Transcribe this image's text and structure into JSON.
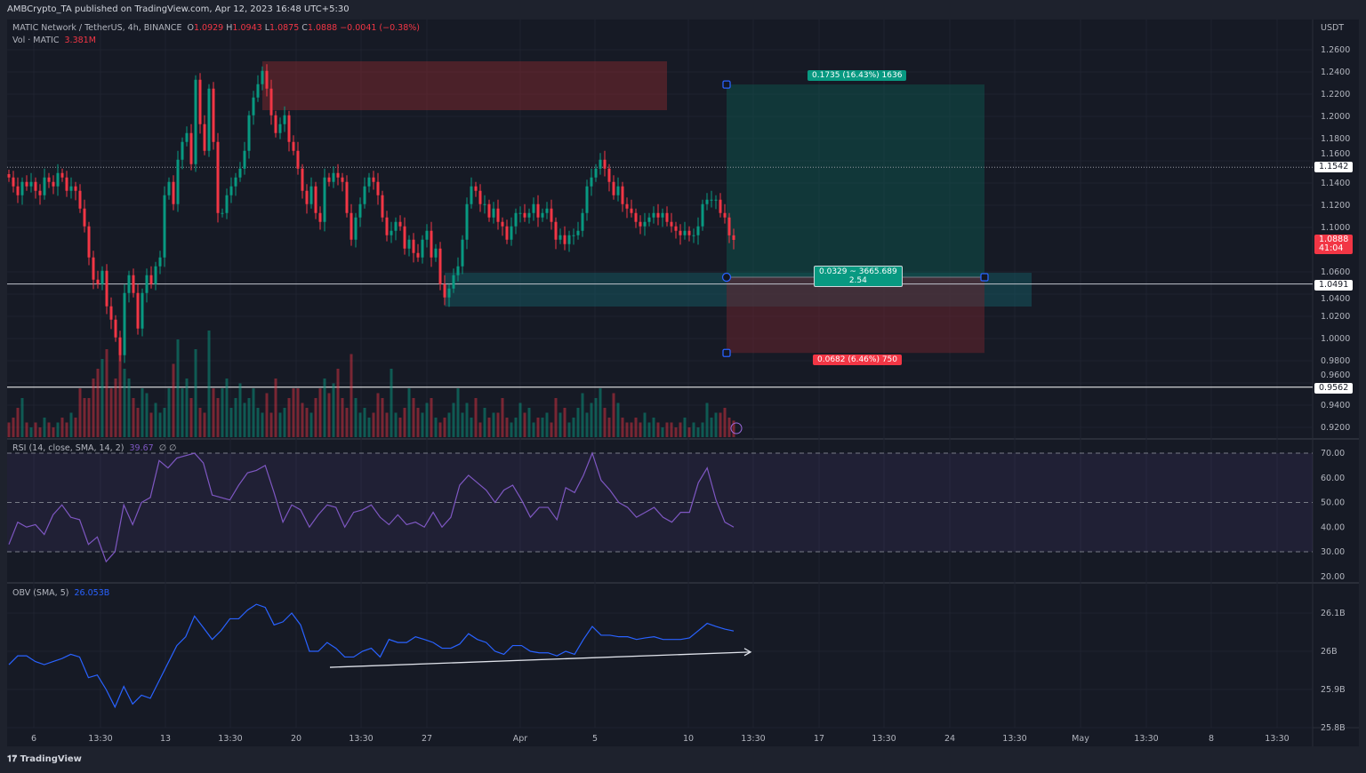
{
  "header": {
    "published": "AMBCrypto_TA published on TradingView.com, Apr 12, 2023 16:48 UTC+5:30"
  },
  "legend": {
    "symbol": "MATIC Network / TetherUS, 4h, BINANCE",
    "o_label": "O",
    "o": "1.0929",
    "h_label": "H",
    "h": "1.0943",
    "l_label": "L",
    "l": "1.0875",
    "c_label": "C",
    "c": "1.0888",
    "change": "−0.0041 (−0.38%)",
    "vol_label": "Vol · MATIC",
    "vol": "3.381M",
    "rsi_label": "RSI (14, close, SMA, 14, 2)",
    "rsi_value": "39.67",
    "rsi_extra": "∅ ∅",
    "obv_label": "OBV (SMA, 5)",
    "obv_value": "26.053B"
  },
  "price_axis": {
    "currency": "USDT",
    "ticks": [
      "1.2600",
      "1.2400",
      "1.2200",
      "1.2000",
      "1.1800",
      "1.1600",
      "1.1400",
      "1.1200",
      "1.1000",
      "1.0600",
      "1.0400",
      "1.0200",
      "1.0000",
      "0.9800",
      "0.9600",
      "0.9400",
      "0.9200"
    ],
    "last_price": "1.0888",
    "countdown": "41:04",
    "level_labels": [
      "1.1542",
      "1.0491",
      "0.9562"
    ]
  },
  "rsi_axis": {
    "ticks": [
      "70.00",
      "60.00",
      "50.00",
      "40.00",
      "30.00",
      "20.00"
    ]
  },
  "obv_axis": {
    "ticks": [
      "26.1B",
      "26B",
      "25.9B",
      "25.8B"
    ]
  },
  "time_axis": {
    "ticks": [
      "6",
      "13:30",
      "13",
      "13:30",
      "20",
      "13:30",
      "27",
      "Apr",
      "5",
      "10",
      "13:30",
      "17",
      "13:30",
      "24",
      "13:30",
      "May",
      "13:30",
      "8",
      "13:30"
    ]
  },
  "position_tool": {
    "target_label": "0.1735 (16.43%) 1636",
    "center_label_1": "0.0329 ~ 3665.689",
    "center_label_2": "2.54",
    "stop_label": "0.0682 (6.46%) 750",
    "entry": 1.0552,
    "target": 1.2287,
    "stop": 0.987
  },
  "footer": {
    "brand": "TradingView"
  },
  "colors": {
    "up": "#089981",
    "down": "#f23645",
    "rsi": "#7e57c2",
    "obv": "#2962ff",
    "profit_bg": "#0f3d3a",
    "loss_bg": "#4a1f26",
    "background": "#161a25"
  },
  "chart_data": [
    {
      "type": "candlestick",
      "title": "MATIC Network / TetherUS, 4h, BINANCE",
      "ylabel": "USDT",
      "ylim": [
        0.91,
        1.275
      ],
      "grid": true,
      "close": [
        1.145,
        1.137,
        1.129,
        1.141,
        1.137,
        1.141,
        1.133,
        1.129,
        1.145,
        1.141,
        1.137,
        1.149,
        1.145,
        1.133,
        1.137,
        1.133,
        1.117,
        1.101,
        1.073,
        1.053,
        1.049,
        1.061,
        1.029,
        1.017,
        1.001,
        0.985,
        1.041,
        1.057,
        1.041,
        1.009,
        1.041,
        1.057,
        1.049,
        1.065,
        1.073,
        1.129,
        1.141,
        1.121,
        1.161,
        1.177,
        1.185,
        1.157,
        1.233,
        1.193,
        1.169,
        1.225,
        1.177,
        1.113,
        1.113,
        1.129,
        1.137,
        1.145,
        1.153,
        1.169,
        1.201,
        1.217,
        1.229,
        1.241,
        1.225,
        1.201,
        1.185,
        1.193,
        1.201,
        1.177,
        1.169,
        1.153,
        1.133,
        1.121,
        1.137,
        1.113,
        1.105,
        1.145,
        1.141,
        1.149,
        1.145,
        1.141,
        1.113,
        1.089,
        1.109,
        1.121,
        1.137,
        1.145,
        1.141,
        1.129,
        1.109,
        1.093,
        1.097,
        1.105,
        1.101,
        1.081,
        1.089,
        1.077,
        1.073,
        1.089,
        1.097,
        1.073,
        1.081,
        1.049,
        1.037,
        1.045,
        1.057,
        1.065,
        1.089,
        1.121,
        1.137,
        1.133,
        1.121,
        1.121,
        1.109,
        1.117,
        1.105,
        1.101,
        1.089,
        1.101,
        1.113,
        1.113,
        1.109,
        1.113,
        1.121,
        1.109,
        1.113,
        1.117,
        1.105,
        1.089,
        1.093,
        1.085,
        1.093,
        1.093,
        1.097,
        1.113,
        1.137,
        1.145,
        1.153,
        1.161,
        1.153,
        1.141,
        1.129,
        1.137,
        1.121,
        1.117,
        1.113,
        1.105,
        1.101,
        1.105,
        1.109,
        1.113,
        1.109,
        1.113,
        1.105,
        1.101,
        1.097,
        1.093,
        1.097,
        1.093,
        1.093,
        1.101,
        1.121,
        1.125,
        1.125,
        1.125,
        1.113,
        1.109,
        1.0929,
        1.0888
      ],
      "volume_millions": [
        3,
        4,
        6,
        8,
        3,
        2,
        3,
        2,
        4,
        3,
        2,
        3,
        4,
        3,
        5,
        4,
        10,
        8,
        8,
        12,
        14,
        16,
        18,
        10,
        12,
        18,
        14,
        12,
        8,
        6,
        10,
        9,
        5,
        7,
        5,
        6,
        10,
        15,
        20,
        10,
        12,
        8,
        18,
        6,
        5,
        24,
        10,
        8,
        10,
        12,
        6,
        8,
        11,
        7,
        8,
        10,
        6,
        5,
        9,
        5,
        12,
        5,
        6,
        8,
        10,
        10,
        7,
        6,
        5,
        8,
        10,
        12,
        9,
        11,
        14,
        8,
        6,
        17,
        8,
        5,
        6,
        4,
        5,
        9,
        8,
        5,
        14,
        5,
        4,
        6,
        10,
        8,
        6,
        5,
        7,
        8,
        4,
        3,
        4,
        5,
        7,
        10,
        5,
        7,
        4,
        8,
        3,
        6,
        4,
        5,
        5,
        8,
        4,
        3,
        4,
        7,
        5,
        6,
        3,
        4,
        4,
        5,
        3,
        8,
        5,
        6,
        3,
        4,
        6,
        9,
        5,
        7,
        8,
        10,
        6,
        4,
        9,
        7,
        4,
        3,
        3,
        4,
        3,
        5,
        3,
        4,
        3,
        2,
        3,
        3,
        2,
        3,
        4,
        2,
        3,
        2,
        3,
        7,
        4,
        5,
        5,
        6,
        4,
        3.381
      ],
      "horizontal_levels": [
        1.1542,
        1.0491,
        0.9562
      ],
      "zones": [
        {
          "kind": "supply",
          "top": 1.2496,
          "bottom": 1.2056
        },
        {
          "kind": "demand",
          "top": 1.0592,
          "bottom": 1.0288
        }
      ]
    },
    {
      "type": "line",
      "title": "RSI (14, close, SMA, 14, 2)",
      "ylim": [
        20,
        70
      ],
      "bands": [
        30,
        50,
        70
      ],
      "values": [
        33,
        42,
        40,
        41,
        37,
        45,
        49,
        44,
        43,
        33,
        36,
        26,
        30,
        49,
        41,
        50,
        52,
        67,
        64,
        68,
        69,
        70,
        66,
        53,
        52,
        51,
        57,
        62,
        63,
        65,
        54,
        42,
        49,
        47,
        40,
        45,
        49,
        48,
        40,
        46,
        47,
        49,
        44,
        41,
        45,
        41,
        42,
        40,
        46,
        40,
        44,
        57,
        61,
        58,
        55,
        50,
        55,
        57,
        51,
        44,
        48,
        48,
        43,
        56,
        54,
        61,
        70,
        59,
        55,
        50,
        48,
        44,
        46,
        48,
        44,
        42,
        46,
        46,
        58,
        64,
        51,
        42,
        40
      ]
    },
    {
      "type": "line",
      "title": "OBV (SMA, 5)",
      "ylabel": "B",
      "ylim": [
        25.8,
        26.14
      ],
      "values": [
        25.965,
        25.988,
        25.988,
        25.973,
        25.965,
        25.973,
        25.981,
        25.992,
        25.985,
        25.931,
        25.938,
        25.9,
        25.854,
        25.908,
        25.862,
        25.885,
        25.877,
        25.923,
        25.969,
        26.015,
        26.038,
        26.092,
        26.062,
        26.031,
        26.054,
        26.085,
        26.085,
        26.108,
        26.123,
        26.115,
        26.069,
        26.077,
        26.1,
        26.069,
        26.0,
        26.0,
        26.023,
        26.008,
        25.985,
        25.985,
        26.0,
        26.008,
        25.985,
        26.031,
        26.023,
        26.023,
        26.038,
        26.031,
        26.023,
        26.008,
        26.008,
        26.019,
        26.046,
        26.031,
        26.023,
        26.0,
        25.992,
        26.015,
        26.015,
        26.0,
        25.996,
        25.996,
        25.988,
        26.0,
        25.992,
        26.031,
        26.065,
        26.042,
        26.042,
        26.038,
        26.038,
        26.031,
        26.035,
        26.038,
        26.031,
        26.031,
        26.031,
        26.035,
        26.054,
        26.073,
        26.065,
        26.058,
        26.053
      ],
      "trendline": {
        "start": 25.958,
        "end": 25.998
      }
    }
  ]
}
